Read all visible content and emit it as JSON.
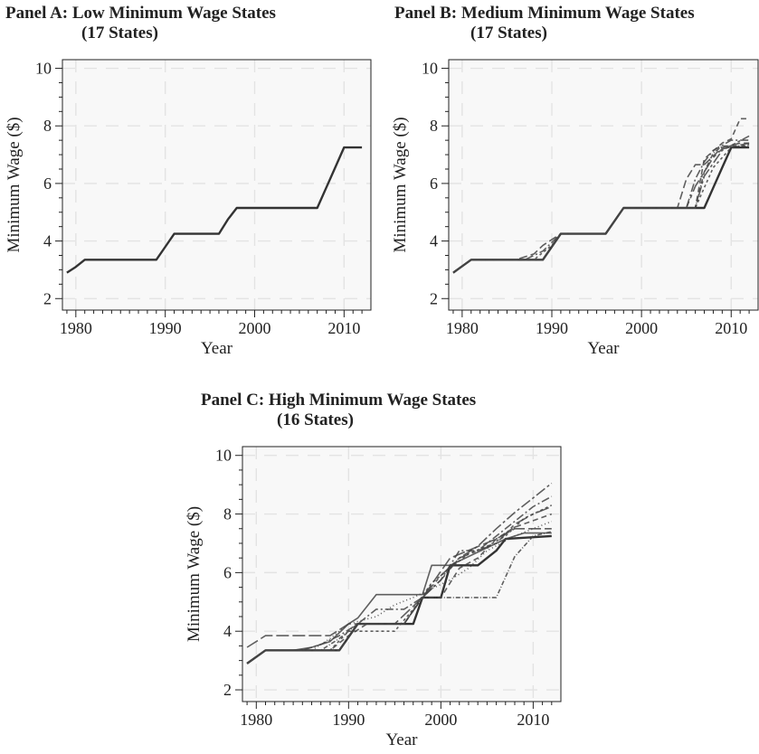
{
  "chart_data": [
    {
      "type": "line",
      "title": "Panel A: Low Minimum Wage States",
      "subtitle": "(17 States)",
      "xlabel": "Year",
      "ylabel": "Minimum Wage ($)",
      "xlim": [
        1978.5,
        2013
      ],
      "ylim": [
        1.6,
        10.3
      ],
      "xticks": [
        1980,
        1990,
        2000,
        2010
      ],
      "yticks": [
        2,
        4,
        6,
        8,
        10
      ],
      "grid": true,
      "series": [
        {
          "x": [
            1979,
            1980,
            1981,
            1989,
            1990,
            1991,
            1996,
            1997,
            1998,
            2006,
            2007,
            2008,
            2009,
            2010,
            2012
          ],
          "y": [
            2.9,
            3.1,
            3.35,
            3.35,
            3.8,
            4.25,
            4.25,
            4.75,
            5.15,
            5.15,
            5.15,
            5.85,
            6.55,
            7.25,
            7.25
          ],
          "dash": ""
        }
      ]
    },
    {
      "type": "line",
      "title": "Panel B: Medium Minimum Wage States",
      "subtitle": "(17 States)",
      "xlabel": "Year",
      "ylabel": "Minimum Wage ($)",
      "xlim": [
        1978.5,
        2013
      ],
      "ylim": [
        1.6,
        10.3
      ],
      "xticks": [
        1980,
        1990,
        2000,
        2010
      ],
      "yticks": [
        2,
        4,
        6,
        8,
        10
      ],
      "grid": true,
      "series": [
        {
          "x": [
            1979,
            1981,
            1989,
            1991,
            1996,
            1998,
            2007,
            2008,
            2009,
            2010,
            2012
          ],
          "y": [
            2.9,
            3.35,
            3.35,
            4.25,
            4.25,
            5.15,
            5.15,
            5.85,
            6.55,
            7.25,
            7.25
          ],
          "dash": ""
        },
        {
          "x": [
            1979,
            1981,
            1986,
            1988,
            1989,
            1991,
            1996,
            1998,
            2004,
            2005,
            2006,
            2007,
            2009,
            2011,
            2012
          ],
          "y": [
            2.9,
            3.35,
            3.35,
            3.55,
            3.85,
            4.25,
            4.25,
            5.15,
            5.15,
            6.15,
            6.65,
            6.65,
            7.25,
            7.4,
            7.4
          ],
          "dash": "9,4"
        },
        {
          "x": [
            1979,
            1981,
            1987,
            1989,
            1991,
            1996,
            1998,
            2005,
            2006,
            2007,
            2008,
            2010,
            2012
          ],
          "y": [
            2.9,
            3.35,
            3.35,
            3.65,
            4.25,
            4.25,
            5.15,
            5.15,
            6.15,
            6.75,
            7.15,
            7.5,
            7.5
          ],
          "dash": "9,3,2,3"
        },
        {
          "x": [
            1979,
            1981,
            1989,
            1991,
            1996,
            1998,
            2006,
            2007,
            2009,
            2010,
            2011,
            2012
          ],
          "y": [
            2.9,
            3.35,
            3.35,
            4.25,
            4.25,
            5.15,
            5.15,
            6.85,
            7.4,
            7.55,
            8.25,
            8.25
          ],
          "dash": "6,4"
        },
        {
          "x": [
            1979,
            1981,
            1989,
            1991,
            1996,
            1998,
            2006,
            2007,
            2009,
            2012
          ],
          "y": [
            2.9,
            3.35,
            3.35,
            4.25,
            4.25,
            5.15,
            5.15,
            6.25,
            7.15,
            7.65
          ],
          "dash": "12,3,3,3"
        },
        {
          "x": [
            1979,
            1981,
            1988,
            1990,
            1991,
            1996,
            1998,
            2006,
            2008,
            2010,
            2012
          ],
          "y": [
            2.9,
            3.35,
            3.35,
            3.85,
            4.25,
            4.25,
            5.15,
            5.15,
            6.55,
            7.25,
            7.35
          ],
          "dash": "3,3"
        },
        {
          "x": [
            1979,
            1981,
            1989,
            1991,
            1996,
            1998,
            2005,
            2006,
            2007,
            2008,
            2009,
            2012
          ],
          "y": [
            2.9,
            3.35,
            3.35,
            4.25,
            4.25,
            5.15,
            5.15,
            5.9,
            6.4,
            6.9,
            7.2,
            7.4
          ],
          "dash": "14,4,4,4"
        },
        {
          "x": [
            1979,
            1981,
            1989,
            1991,
            1996,
            1998,
            2006,
            2007,
            2008,
            2009,
            2012
          ],
          "y": [
            2.9,
            3.35,
            3.35,
            4.25,
            4.25,
            5.15,
            5.15,
            6.4,
            7.05,
            7.3,
            7.3
          ],
          "dash": "5,2,1,2"
        }
      ]
    },
    {
      "type": "line",
      "title": "Panel C: High Minimum Wage States",
      "subtitle": "(16 States)",
      "xlabel": "Year",
      "ylabel": "Minimum Wage ($)",
      "xlim": [
        1978.5,
        2013
      ],
      "ylim": [
        1.6,
        10.3
      ],
      "xticks": [
        1980,
        1990,
        2000,
        2010
      ],
      "yticks": [
        2,
        4,
        6,
        8,
        10
      ],
      "grid": true,
      "series": [
        {
          "x": [
            1979,
            1981,
            1989,
            1990,
            1991,
            1997,
            1998,
            2000,
            2001,
            2002,
            2004,
            2005,
            2006,
            2007,
            2012
          ],
          "y": [
            2.9,
            3.35,
            3.35,
            3.8,
            4.25,
            4.25,
            5.15,
            5.15,
            6.25,
            6.25,
            6.25,
            6.5,
            6.75,
            7.15,
            7.25
          ],
          "dash": ""
        },
        {
          "x": [
            1979,
            1981,
            1987,
            1988,
            1990,
            1993,
            1995,
            1998,
            2001,
            2006,
            2008,
            2012
          ],
          "y": [
            3.45,
            3.85,
            3.85,
            3.85,
            4.25,
            4.25,
            4.25,
            5.15,
            6.5,
            7.15,
            7.5,
            7.5
          ],
          "dash": "14,4"
        },
        {
          "x": [
            1979,
            1981,
            1984,
            1986,
            1988,
            1990,
            1991,
            1993,
            1998,
            1999,
            2001,
            2007,
            2009,
            2012
          ],
          "y": [
            2.9,
            3.35,
            3.35,
            3.45,
            3.65,
            4.25,
            4.45,
            5.25,
            5.25,
            6.25,
            6.25,
            7.15,
            7.35,
            7.35
          ],
          "dash": ""
        },
        {
          "x": [
            1979,
            1981,
            1985,
            1987,
            1989,
            1991,
            1993,
            1996,
            1998,
            2000,
            2002,
            2004,
            2007,
            2010,
            2012
          ],
          "y": [
            2.9,
            3.35,
            3.35,
            3.55,
            3.85,
            4.25,
            4.75,
            4.75,
            5.15,
            5.75,
            6.75,
            6.75,
            7.5,
            8.25,
            8.6
          ],
          "dash": "9,3,2,3"
        },
        {
          "x": [
            1979,
            1981,
            1988,
            1990,
            1992,
            1996,
            1998,
            2000,
            2002,
            2004,
            2006,
            2008,
            2012
          ],
          "y": [
            2.9,
            3.35,
            3.35,
            3.85,
            4.25,
            4.25,
            5.15,
            5.15,
            6.15,
            6.5,
            7.15,
            7.55,
            8.0
          ],
          "dash": "6,4"
        },
        {
          "x": [
            1979,
            1981,
            1989,
            1991,
            1996,
            1998,
            2000,
            2002,
            2004,
            2006,
            2008,
            2010,
            2012
          ],
          "y": [
            2.9,
            3.35,
            3.35,
            4.25,
            4.25,
            5.15,
            5.75,
            6.5,
            6.9,
            7.5,
            8.05,
            8.55,
            9.05
          ],
          "dash": "12,3,3,3"
        },
        {
          "x": [
            1979,
            1981,
            1988,
            1990,
            1995,
            1997,
            1999,
            2001,
            2003,
            2005,
            2007,
            2009,
            2012
          ],
          "y": [
            2.9,
            3.35,
            3.35,
            4.0,
            4.0,
            4.75,
            5.65,
            6.15,
            6.65,
            6.9,
            7.25,
            7.85,
            8.3
          ],
          "dash": "3,3"
        },
        {
          "x": [
            1979,
            1981,
            1987,
            1989,
            1991,
            1996,
            1998,
            2000,
            2002,
            2006,
            2008,
            2010,
            2012
          ],
          "y": [
            2.9,
            3.35,
            3.35,
            3.75,
            4.25,
            4.25,
            5.15,
            5.15,
            5.15,
            5.15,
            6.55,
            7.25,
            7.4
          ],
          "dash": "5,2,1,2"
        },
        {
          "x": [
            1979,
            1981,
            1986,
            1988,
            1990,
            1993,
            1995,
            1997,
            1999,
            2001,
            2003,
            2005,
            2008,
            2012
          ],
          "y": [
            2.9,
            3.35,
            3.35,
            3.75,
            4.25,
            4.5,
            4.9,
            5.15,
            5.45,
            5.75,
            6.15,
            6.75,
            7.25,
            7.75
          ],
          "dash": "1,3"
        },
        {
          "x": [
            1979,
            1981,
            1989,
            1991,
            1996,
            1998,
            2000,
            2002,
            2004,
            2006,
            2008,
            2010,
            2012
          ],
          "y": [
            2.9,
            3.35,
            3.35,
            4.25,
            4.25,
            5.15,
            5.9,
            6.5,
            6.75,
            7.0,
            7.65,
            8.0,
            8.25
          ],
          "dash": "14,4,4,4"
        }
      ]
    }
  ]
}
